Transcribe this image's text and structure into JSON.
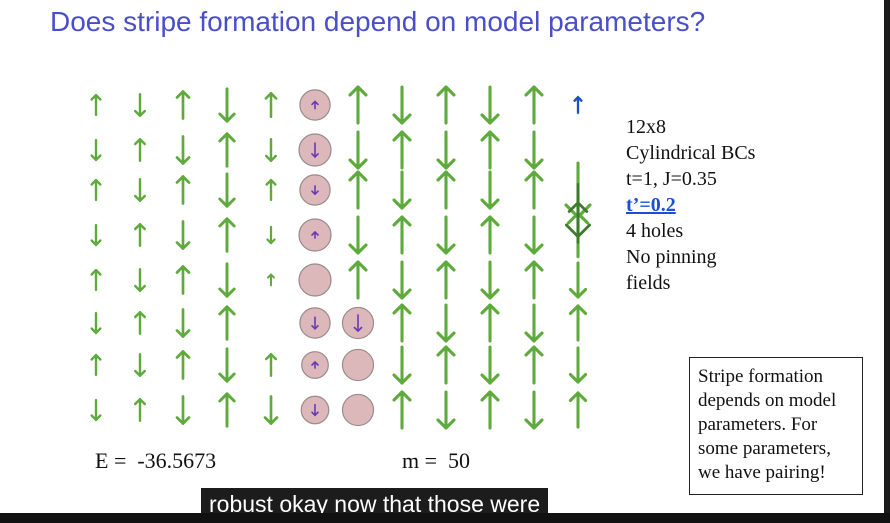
{
  "slide": {
    "title": "Does stripe formation depend on model parameters?",
    "params": {
      "size": "12x8",
      "bcs": "Cylindrical BCs",
      "couplings": "t=1, J=0.35",
      "tprime": "t’=0.2",
      "holes": "4 holes",
      "pinning_line1": "No pinning",
      "pinning_line2": "fields"
    },
    "energy": "E =  -36.5673",
    "m": "m =  50",
    "note": "Stripe formation depends on model parameters.  For some parameters, we have pairing!"
  },
  "caption": "robust okay now that those were",
  "lattice": {
    "rows": 8,
    "cols": 12,
    "spin_color": "#5faa3c",
    "spin_color_dark": "#3c7a2c",
    "hole_fill": "#dcb8bb",
    "hole_stroke": "#9a8a8b",
    "small_arrow_color": "#6a38b0",
    "edge_arrow_color": "#1a4fd6",
    "columns": [
      {
        "spins": [
          1,
          -1,
          1,
          -1,
          1,
          -1,
          1,
          -1
        ],
        "scale": [
          0.55,
          0.55,
          0.55,
          0.55,
          0.55,
          0.55,
          0.55,
          0.55
        ]
      },
      {
        "spins": [
          -1,
          1,
          -1,
          1,
          -1,
          1,
          -1,
          1
        ],
        "scale": [
          0.6,
          0.6,
          0.6,
          0.6,
          0.6,
          0.6,
          0.6,
          0.6
        ]
      },
      {
        "spins": [
          1,
          -1,
          1,
          -1,
          1,
          -1,
          1,
          -1
        ],
        "scale": [
          0.75,
          0.75,
          0.75,
          0.75,
          0.75,
          0.75,
          0.75,
          0.75
        ]
      },
      {
        "spins": [
          -1,
          1,
          -1,
          1,
          -1,
          1,
          -1,
          1
        ],
        "scale": [
          0.9,
          0.9,
          0.9,
          0.9,
          0.9,
          0.9,
          0.9,
          0.9
        ]
      },
      {
        "spins": [
          1,
          -1,
          1,
          -1,
          1,
          0,
          1,
          -1
        ],
        "scale": [
          0.65,
          0.6,
          0.55,
          0.45,
          0.3,
          0.1,
          0.6,
          0.75
        ]
      },
      {
        "holes": [
          0.2,
          0.8,
          0.3,
          0.1,
          0,
          0.6,
          0.1,
          0.5
        ],
        "hole_dir": [
          1,
          -1,
          -1,
          1,
          0,
          -1,
          1,
          -1
        ]
      },
      {
        "spins": [
          1,
          -1,
          1,
          -1,
          1,
          0,
          0,
          0
        ],
        "scale": [
          1,
          1,
          1,
          1,
          1,
          1,
          1,
          1
        ],
        "holes_at": [
          5,
          6,
          7
        ],
        "hole_dir_at": [
          -1,
          0,
          0
        ],
        "hole_arrow_at": [
          0.7,
          0,
          0
        ]
      },
      {
        "spins": [
          -1,
          1,
          -1,
          1,
          -1,
          1,
          -1,
          1
        ],
        "scale": [
          1,
          1,
          1,
          1,
          1,
          1,
          1,
          1
        ]
      },
      {
        "spins": [
          1,
          -1,
          1,
          -1,
          1,
          -1,
          1,
          -1
        ],
        "scale": [
          1,
          1,
          1,
          1,
          1,
          1,
          1,
          1
        ]
      },
      {
        "spins": [
          -1,
          1,
          -1,
          1,
          -1,
          1,
          -1,
          1
        ],
        "scale": [
          1,
          1,
          1,
          1,
          1,
          1,
          1,
          1
        ]
      },
      {
        "spins": [
          1,
          -1,
          1,
          -1,
          1,
          -1,
          1,
          -1
        ],
        "scale": [
          1,
          1,
          1,
          1,
          1,
          1,
          1,
          1
        ]
      },
      {
        "spins": [
          1,
          0,
          -1,
          1,
          -1,
          1,
          -1,
          1
        ],
        "scale": [
          0.45,
          0,
          1.5,
          1.2,
          0.95,
          0.95,
          0.95,
          0.95
        ]
      }
    ]
  }
}
